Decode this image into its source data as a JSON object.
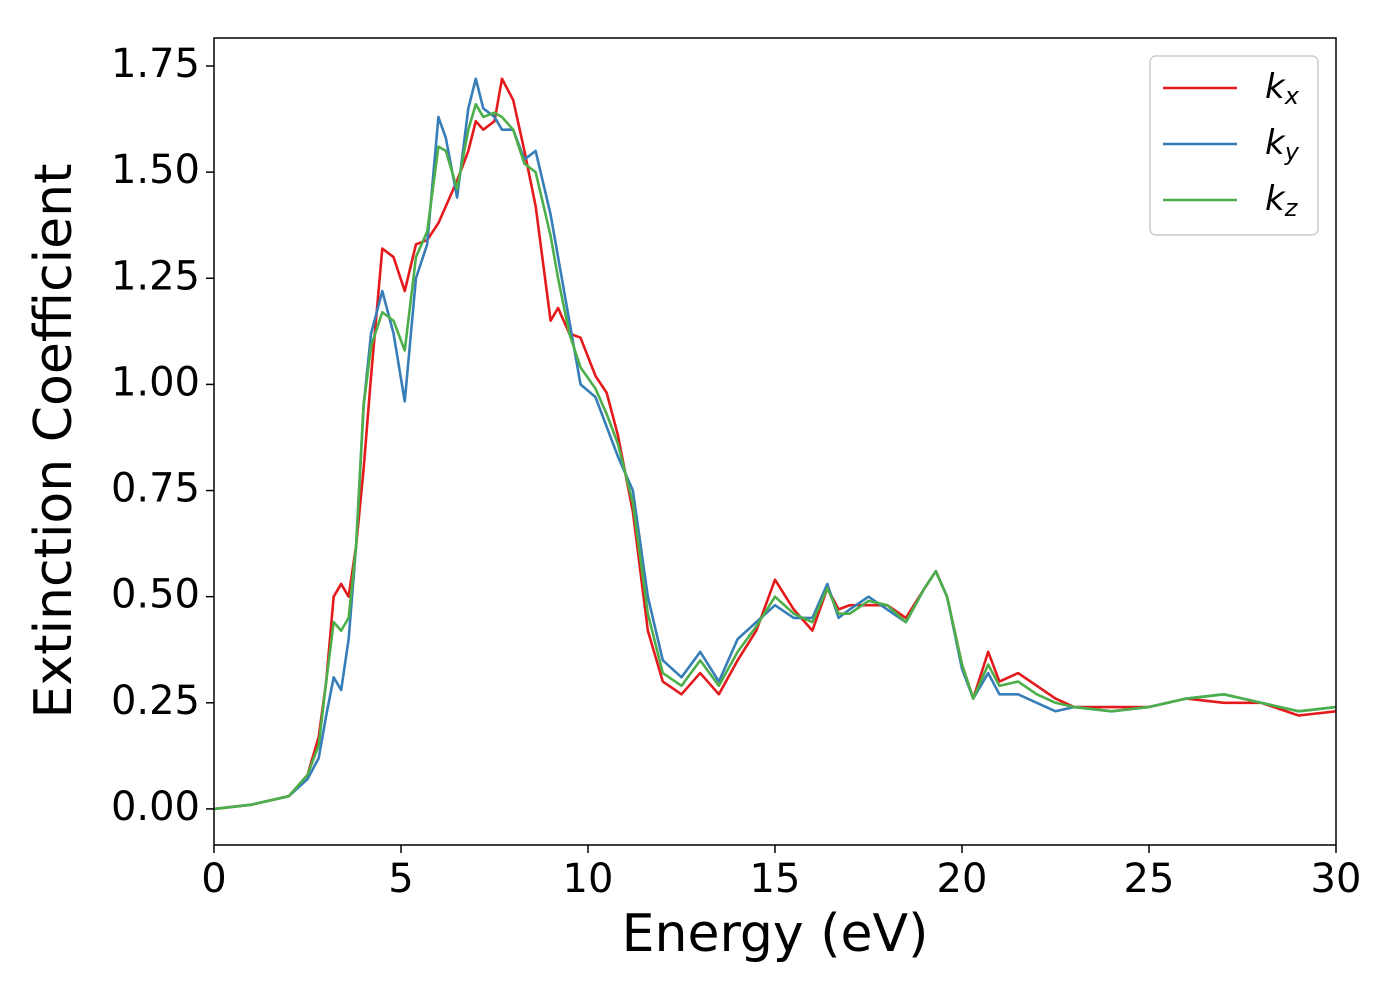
{
  "chart_data": {
    "type": "line",
    "xlabel": "Energy (eV)",
    "ylabel": "Extinction Coefficient",
    "x": [
      0,
      1,
      2,
      2.5,
      2.8,
      3.0,
      3.2,
      3.4,
      3.6,
      3.8,
      4.0,
      4.2,
      4.5,
      4.8,
      5.1,
      5.4,
      5.7,
      6.0,
      6.2,
      6.5,
      6.8,
      7.0,
      7.2,
      7.5,
      7.7,
      8.0,
      8.3,
      8.6,
      9.0,
      9.2,
      9.5,
      9.8,
      10.2,
      10.5,
      10.8,
      11.2,
      11.6,
      12.0,
      12.5,
      13.0,
      13.5,
      14.0,
      14.5,
      15.0,
      15.5,
      16.0,
      16.4,
      16.7,
      17.0,
      17.5,
      18.0,
      18.5,
      19.0,
      19.3,
      19.6,
      20.0,
      20.3,
      20.7,
      21.0,
      21.5,
      22.0,
      22.5,
      23,
      24,
      25,
      26,
      27,
      28,
      29,
      30
    ],
    "series": [
      {
        "name": "kx",
        "color": "#e41a1c",
        "values": [
          0,
          0.01,
          0.03,
          0.08,
          0.17,
          0.3,
          0.5,
          0.53,
          0.5,
          0.62,
          0.8,
          1.02,
          1.32,
          1.3,
          1.22,
          1.33,
          1.34,
          1.38,
          1.42,
          1.48,
          1.55,
          1.62,
          1.6,
          1.62,
          1.72,
          1.67,
          1.55,
          1.42,
          1.15,
          1.18,
          1.12,
          1.11,
          1.02,
          0.98,
          0.88,
          0.7,
          0.42,
          0.3,
          0.27,
          0.32,
          0.27,
          0.35,
          0.42,
          0.54,
          0.47,
          0.42,
          0.52,
          0.47,
          0.48,
          0.48,
          0.48,
          0.45,
          0.52,
          0.56,
          0.5,
          0.34,
          0.26,
          0.37,
          0.3,
          0.32,
          0.29,
          0.26,
          0.24,
          0.24,
          0.24,
          0.26,
          0.25,
          0.25,
          0.22,
          0.23
        ]
      },
      {
        "name": "ky",
        "color": "#377eb8",
        "values": [
          0,
          0.01,
          0.03,
          0.07,
          0.12,
          0.22,
          0.31,
          0.28,
          0.4,
          0.62,
          0.95,
          1.12,
          1.22,
          1.12,
          0.96,
          1.25,
          1.33,
          1.63,
          1.58,
          1.44,
          1.65,
          1.72,
          1.65,
          1.63,
          1.6,
          1.6,
          1.53,
          1.55,
          1.4,
          1.3,
          1.15,
          1.0,
          0.97,
          0.9,
          0.83,
          0.75,
          0.5,
          0.35,
          0.31,
          0.37,
          0.3,
          0.4,
          0.44,
          0.48,
          0.45,
          0.45,
          0.53,
          0.45,
          0.47,
          0.5,
          0.47,
          0.44,
          0.52,
          0.56,
          0.5,
          0.33,
          0.26,
          0.32,
          0.27,
          0.27,
          0.25,
          0.23,
          0.24,
          0.23,
          0.24,
          0.26,
          0.27,
          0.25,
          0.23,
          0.24
        ]
      },
      {
        "name": "kz",
        "color": "#4daf4a",
        "values": [
          0,
          0.01,
          0.03,
          0.08,
          0.15,
          0.3,
          0.44,
          0.42,
          0.45,
          0.62,
          0.95,
          1.09,
          1.17,
          1.15,
          1.08,
          1.3,
          1.36,
          1.56,
          1.55,
          1.46,
          1.6,
          1.66,
          1.63,
          1.64,
          1.63,
          1.6,
          1.52,
          1.5,
          1.35,
          1.25,
          1.12,
          1.04,
          0.99,
          0.93,
          0.86,
          0.72,
          0.46,
          0.32,
          0.29,
          0.35,
          0.29,
          0.37,
          0.43,
          0.5,
          0.46,
          0.44,
          0.52,
          0.46,
          0.46,
          0.49,
          0.48,
          0.44,
          0.52,
          0.56,
          0.5,
          0.34,
          0.26,
          0.34,
          0.29,
          0.3,
          0.27,
          0.25,
          0.24,
          0.23,
          0.24,
          0.26,
          0.27,
          0.25,
          0.23,
          0.24
        ]
      }
    ],
    "xlim": [
      0,
      30
    ],
    "xticks": [
      0,
      5,
      10,
      15,
      20,
      25,
      30
    ],
    "ylim": [
      -0.085,
      1.816
    ],
    "yticks": [
      {
        "value": 0,
        "label": "0.00"
      },
      {
        "value": 0.25,
        "label": "0.25"
      },
      {
        "value": 0.5,
        "label": "0.50"
      },
      {
        "value": 0.75,
        "label": "0.75"
      },
      {
        "value": 1,
        "label": "1.00"
      },
      {
        "value": 1.25,
        "label": "1.25"
      },
      {
        "value": 1.5,
        "label": "1.50"
      },
      {
        "value": 1.75,
        "label": "1.75"
      }
    ],
    "legend": "upper right",
    "grid": false
  }
}
